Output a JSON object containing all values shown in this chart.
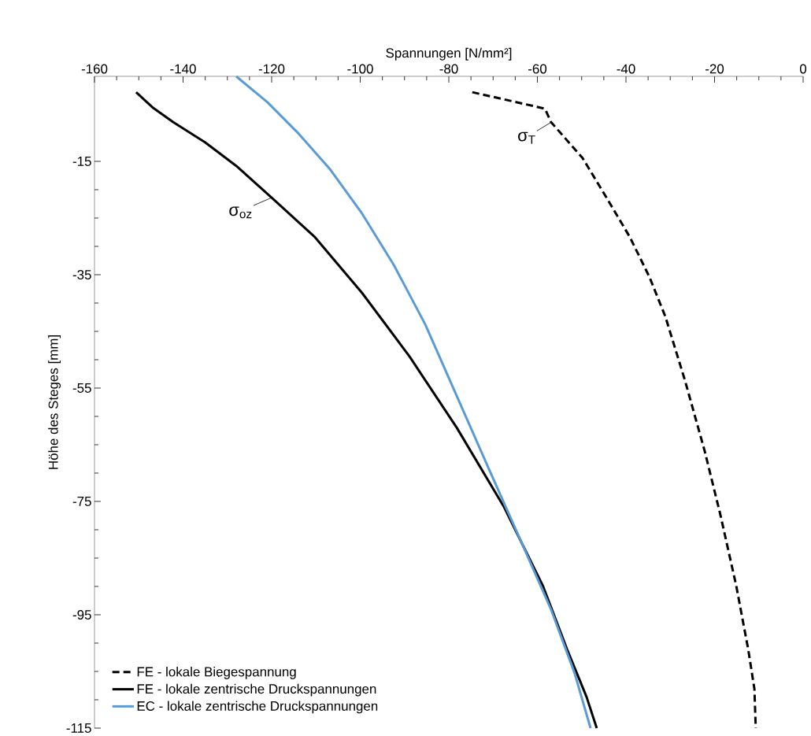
{
  "chart_data": {
    "type": "line",
    "xlabel": "Spannungen [N/mm²]",
    "ylabel": "Höhe des Steges [mm]",
    "xlim": [
      -160,
      0
    ],
    "xticks": [
      -160,
      -140,
      -120,
      -100,
      -80,
      -60,
      -40,
      -20,
      0
    ],
    "ylim": [
      -115,
      0
    ],
    "yticks": [
      -115,
      -95,
      -75,
      -55,
      -35,
      -15
    ],
    "grid": false,
    "legend": "bottom left",
    "marker": "none",
    "annotations": [
      {
        "text": "σ$_{T}$",
        "x": -56.9,
        "y": -8.1
      },
      {
        "text": "σ$_{oz}$",
        "x": -120,
        "y": -21.4
      }
    ],
    "series": [
      {
        "name": "FE - lokale Biegespannung",
        "color": "#000000",
        "line_style": "dashed",
        "x": [
          -74.7,
          -58.3,
          -56.9,
          -49.8,
          -44.4,
          -39.1,
          -34.7,
          -31.1,
          -26.7,
          -22.2,
          -18.7,
          -15.1,
          -12.4,
          -11.0,
          -10.7
        ],
        "values": [
          -2.8,
          -5.7,
          -8.1,
          -14.4,
          -21.4,
          -28.4,
          -35.4,
          -42.4,
          -53.6,
          -66.2,
          -77.3,
          -89.9,
          -101.1,
          -108.1,
          -115
        ]
      },
      {
        "name": "FE - lokale zentrische Druckspannungen",
        "color": "#000000",
        "line_style": "solid",
        "x": [
          -150.6,
          -146.7,
          -142.2,
          -135.1,
          -128,
          -120,
          -110.2,
          -99.6,
          -88.9,
          -78.2,
          -67.6,
          -58.7,
          -53.3,
          -48.9,
          -46.6
        ],
        "values": [
          -2.8,
          -5.6,
          -8.1,
          -11.6,
          -15.8,
          -21.4,
          -28.4,
          -38.2,
          -49.4,
          -62,
          -75.9,
          -90,
          -101.1,
          -109.5,
          -115
        ]
      },
      {
        "name": "EC - lokale zentrische Druckspannungen",
        "color": "#5b9bd5",
        "line_style": "solid",
        "x": [
          -128,
          -120.9,
          -113.8,
          -106.7,
          -99.6,
          -92.4,
          -85.3,
          -78.2,
          -71.1,
          -64,
          -56.9,
          -51.6,
          -48
        ],
        "values": [
          0,
          -4.6,
          -10.2,
          -16.5,
          -24.2,
          -33.3,
          -43.8,
          -56.4,
          -69,
          -81.5,
          -94.1,
          -105.3,
          -115
        ]
      }
    ]
  }
}
